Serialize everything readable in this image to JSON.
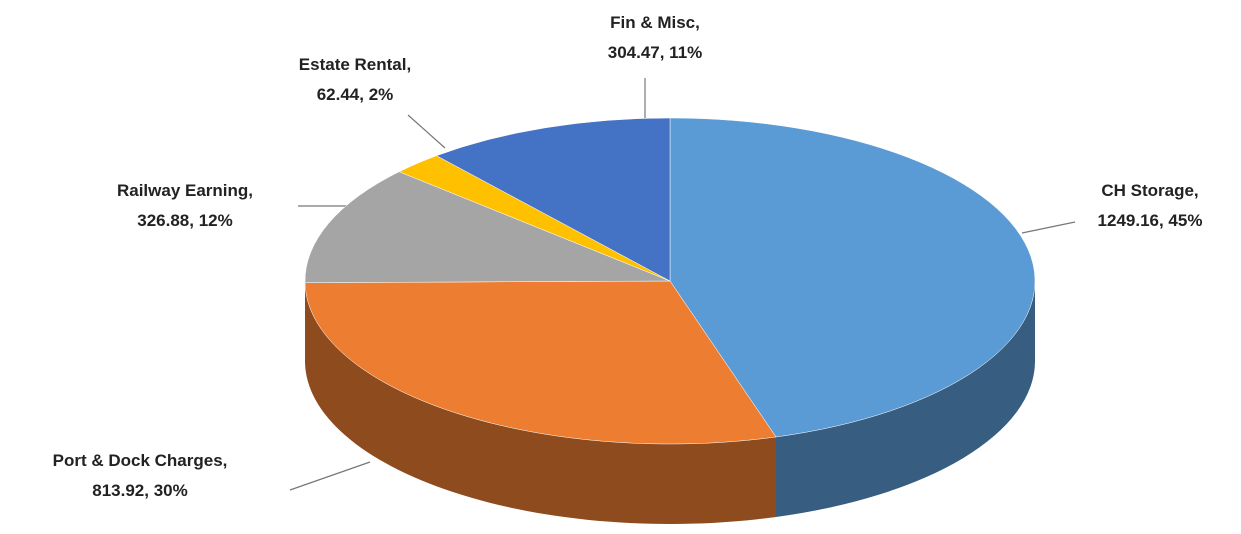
{
  "chart_data": {
    "type": "pie3d",
    "values": [
      1249.16,
      813.92,
      326.88,
      62.44,
      304.47
    ],
    "value_labels": [
      [
        "CH Storage,",
        "1249.16, 45%"
      ],
      [
        "Port & Dock Charges,",
        "813.92, 30%"
      ],
      [
        "Railway Earning,",
        "326.88, 12%"
      ],
      [
        "Estate Rental,",
        "62.44, 2%"
      ],
      [
        "Fin & Misc,",
        "304.47, 11%"
      ]
    ],
    "colors": [
      "#5b9bd5",
      "#ed7d31",
      "#a5a5a5",
      "#ffc000",
      "#4472c4"
    ]
  }
}
